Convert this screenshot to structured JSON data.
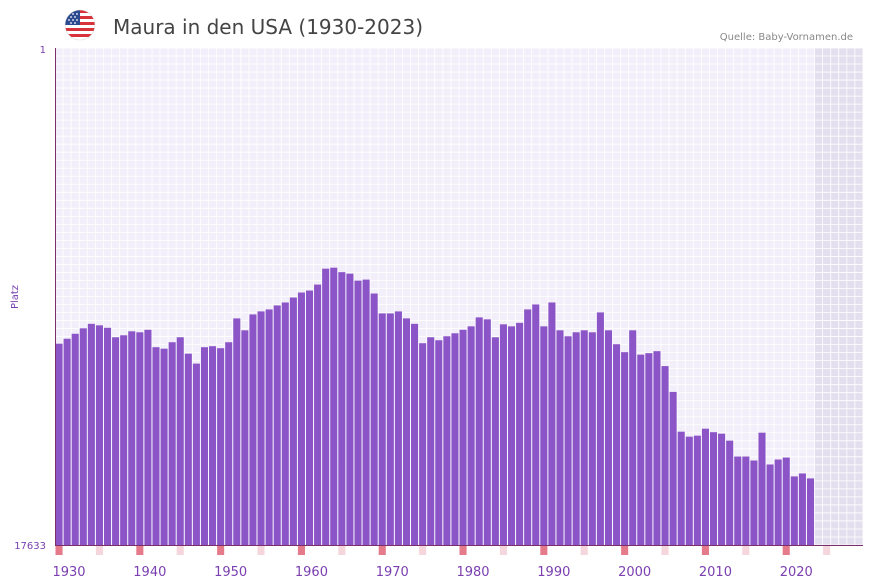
{
  "chart_data": {
    "type": "bar",
    "title": "Maura in den USA (1930-2023)",
    "source": "Quelle: Baby-Vornamen.de",
    "xlabel": "",
    "ylabel": "Platz",
    "y_tick_top": "1",
    "y_tick_bottom": "17633",
    "x_tick_labels": [
      "1930",
      "1940",
      "1950",
      "1960",
      "1970",
      "1980",
      "1990",
      "2000",
      "2010",
      "2020"
    ],
    "x": [
      1930,
      1931,
      1932,
      1933,
      1934,
      1935,
      1936,
      1937,
      1938,
      1939,
      1940,
      1941,
      1942,
      1943,
      1944,
      1945,
      1946,
      1947,
      1948,
      1949,
      1950,
      1951,
      1952,
      1953,
      1954,
      1955,
      1956,
      1957,
      1958,
      1959,
      1960,
      1961,
      1962,
      1963,
      1964,
      1965,
      1966,
      1967,
      1968,
      1969,
      1970,
      1971,
      1972,
      1973,
      1974,
      1975,
      1976,
      1977,
      1978,
      1979,
      1980,
      1981,
      1982,
      1983,
      1984,
      1985,
      1986,
      1987,
      1988,
      1989,
      1990,
      1991,
      1992,
      1993,
      1994,
      1995,
      1996,
      1997,
      1998,
      1999,
      2000,
      2001,
      2002,
      2003,
      2004,
      2005,
      2006,
      2007,
      2008,
      2009,
      2010,
      2011,
      2012,
      2013,
      2014,
      2015,
      2016,
      2017,
      2018,
      2019,
      2020,
      2021,
      2022,
      2023
    ],
    "bar_height_fraction": [
      0.405,
      0.415,
      0.425,
      0.436,
      0.445,
      0.442,
      0.437,
      0.418,
      0.422,
      0.43,
      0.428,
      0.433,
      0.398,
      0.395,
      0.408,
      0.418,
      0.385,
      0.365,
      0.398,
      0.4,
      0.396,
      0.408,
      0.456,
      0.432,
      0.464,
      0.47,
      0.474,
      0.482,
      0.488,
      0.498,
      0.508,
      0.512,
      0.524,
      0.556,
      0.558,
      0.549,
      0.546,
      0.532,
      0.534,
      0.506,
      0.466,
      0.466,
      0.47,
      0.456,
      0.445,
      0.406,
      0.418,
      0.412,
      0.42,
      0.426,
      0.433,
      0.44,
      0.458,
      0.454,
      0.418,
      0.444,
      0.44,
      0.447,
      0.474,
      0.484,
      0.44,
      0.488,
      0.432,
      0.42,
      0.428,
      0.432,
      0.428,
      0.468,
      0.432,
      0.404,
      0.388,
      0.432,
      0.383,
      0.386,
      0.39,
      0.36,
      0.308,
      0.228,
      0.218,
      0.22,
      0.234,
      0.227,
      0.224,
      0.21,
      0.178,
      0.178,
      0.17,
      0.226,
      0.162,
      0.172,
      0.176,
      0.138,
      0.144,
      0.134
    ],
    "future_shaded_from": 2024,
    "x_axis_range": [
      1930,
      2030
    ],
    "grid": true,
    "colors": {
      "bar": "#8b55c7",
      "plot_bg": "#f3effa",
      "future_bg": "#e4dfee",
      "grid": "#ffffff",
      "axis": "#7a2f6a",
      "decade_marker": "#e57a8a",
      "half_decade_marker": "#f6d6dd",
      "text_accent": "#7a3fb0"
    },
    "flag_icon": "us-flag-icon"
  }
}
